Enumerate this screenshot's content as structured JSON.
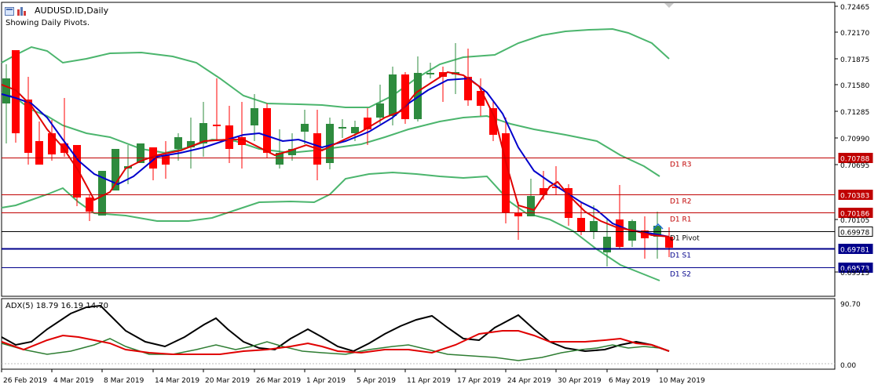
{
  "header": {
    "symbol_title": "AUDUSD.ID,Daily",
    "pivot_note": "Showing Daily Pivots."
  },
  "price_axis": {
    "ticks": [
      "0.72465",
      "0.72170",
      "0.71875",
      "0.71580",
      "0.71285",
      "0.70990",
      "0.70695",
      "0.70105",
      "0.69515"
    ]
  },
  "date_axis": {
    "labels": [
      "26 Feb 2019",
      "4 Mar 2019",
      "8 Mar 2019",
      "14 Mar 2019",
      "20 Mar 2019",
      "26 Mar 2019",
      "1 Apr 2019",
      "5 Apr 2019",
      "11 Apr 2019",
      "17 Apr 2019",
      "24 Apr 2019",
      "30 Apr 2019",
      "6 May 2019",
      "10 May 2019"
    ]
  },
  "pivots": [
    {
      "label": "D1 R3",
      "price": 0.70788,
      "tag": "0.70788",
      "kind": "resistance"
    },
    {
      "label": "D1 R2",
      "price": 0.70383,
      "tag": "0.70383",
      "kind": "resistance"
    },
    {
      "label": "D1 R1",
      "price": 0.70186,
      "tag": "0.70186",
      "kind": "resistance"
    },
    {
      "label": "D1 Pivot",
      "price": 0.69978,
      "tag": "0.69978",
      "kind": "pivot"
    },
    {
      "label": "D1 S1",
      "price": 0.69781,
      "tag": "0.69781",
      "kind": "support"
    },
    {
      "label": "D1 S2",
      "price": 0.69573,
      "tag": "0.69573",
      "kind": "support"
    }
  ],
  "adx_panel": {
    "title": "ADX(5) 18.79 16.19 14.70",
    "scale_top": "90.70",
    "scale_bottom": "0.00"
  },
  "colors": {
    "bull": "#2e8b3e",
    "bear": "#ff0000",
    "ma_fast": "#e00000",
    "ma_slow": "#0000cc",
    "bollinger": "#4bb56d",
    "resistance": "#c00000",
    "support": "#00008b",
    "pivot": "#000000",
    "adx_main": "#000000",
    "adx_plus": "#2e7d32",
    "adx_minus": "#e00000"
  }
}
